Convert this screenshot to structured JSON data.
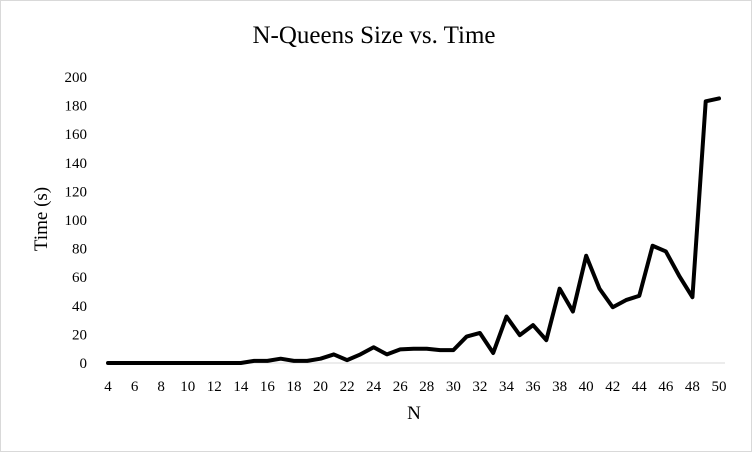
{
  "chart_data": {
    "type": "line",
    "title": "N-Queens Size vs. Time",
    "xlabel": "N",
    "ylabel": "Time (s)",
    "x_tick_labels": [
      "4",
      "6",
      "8",
      "10",
      "12",
      "14",
      "16",
      "18",
      "20",
      "22",
      "24",
      "26",
      "28",
      "30",
      "32",
      "34",
      "36",
      "38",
      "40",
      "42",
      "44",
      "46",
      "48",
      "50"
    ],
    "y_tick_labels": [
      "0",
      "20",
      "40",
      "60",
      "80",
      "100",
      "120",
      "140",
      "160",
      "180",
      "200"
    ],
    "xlim": [
      4,
      50
    ],
    "ylim": [
      0,
      200
    ],
    "grid": false,
    "legend": "none",
    "line_color": "#000000",
    "series": [
      {
        "x": [
          4,
          5,
          6,
          7,
          8,
          9,
          10,
          11,
          12,
          13,
          14,
          15,
          16,
          17,
          18,
          19,
          20,
          21,
          22,
          23,
          24,
          25,
          26,
          27,
          28,
          29,
          30,
          31,
          32,
          33,
          34,
          35,
          36,
          37,
          38,
          39,
          40,
          41,
          42,
          43,
          44,
          45,
          46,
          47,
          48,
          49,
          50
        ],
        "values": [
          0,
          0,
          0,
          0,
          0,
          0,
          0,
          0,
          0,
          0,
          0,
          1.5,
          1.5,
          3,
          1.5,
          1.5,
          3,
          6,
          2,
          6,
          11,
          6,
          9.5,
          10,
          10,
          9,
          9,
          18.5,
          21,
          7,
          32.5,
          19.5,
          26.5,
          16,
          52,
          36,
          75,
          52,
          39,
          44,
          47,
          82,
          78,
          61,
          46,
          183,
          185
        ]
      }
    ]
  }
}
